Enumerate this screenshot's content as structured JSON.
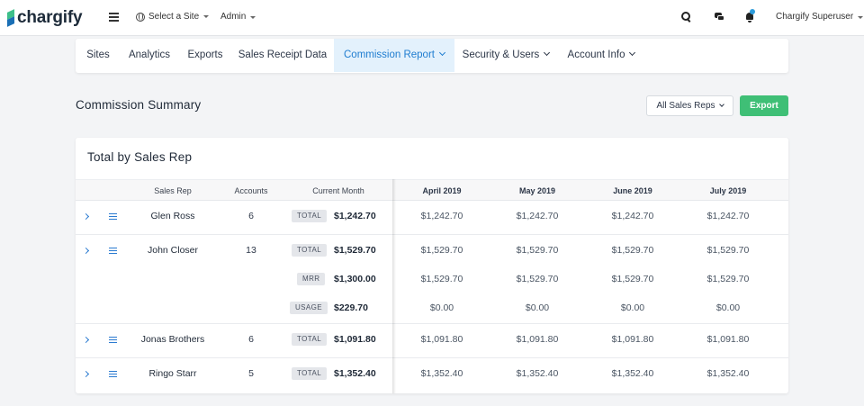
{
  "topbar": {
    "logo_text": "chargify",
    "site_select_label": "Select a Site",
    "admin_label": "Admin",
    "user_label": "Chargify Superuser"
  },
  "nav": {
    "items": [
      {
        "label": "Sites",
        "dropdown": false,
        "active": false
      },
      {
        "label": "Analytics",
        "dropdown": false,
        "active": false
      },
      {
        "label": "Exports",
        "dropdown": false,
        "active": false
      },
      {
        "label": "Sales Receipt Data",
        "dropdown": false,
        "active": false
      },
      {
        "label": "Commission Report",
        "dropdown": true,
        "active": true
      },
      {
        "label": "Security & Users",
        "dropdown": true,
        "active": false
      },
      {
        "label": "Account Info",
        "dropdown": true,
        "active": false
      }
    ]
  },
  "page": {
    "title": "Commission Summary",
    "reps_select_label": "All Sales Reps",
    "export_label": "Export"
  },
  "table": {
    "card_title": "Total by Sales Rep",
    "columns": {
      "sales_rep": "Sales Rep",
      "accounts": "Accounts",
      "current_month": "Current Month"
    },
    "months": [
      "April 2019",
      "May 2019",
      "June 2019",
      "July 2019"
    ],
    "rows": [
      {
        "name": "Glen Ross",
        "accounts": "6",
        "lines": [
          {
            "tag": "TOTAL",
            "current": "$1,242.70",
            "months": [
              "$1,242.70",
              "$1,242.70",
              "$1,242.70",
              "$1,242.70"
            ]
          }
        ]
      },
      {
        "name": "John Closer",
        "accounts": "13",
        "lines": [
          {
            "tag": "TOTAL",
            "current": "$1,529.70",
            "months": [
              "$1,529.70",
              "$1,529.70",
              "$1,529.70",
              "$1,529.70"
            ]
          },
          {
            "tag": "MRR",
            "current": "$1,300.00",
            "months": [
              "$1,529.70",
              "$1,529.70",
              "$1,529.70",
              "$1,529.70"
            ]
          },
          {
            "tag": "USAGE",
            "current": "$229.70",
            "months": [
              "$0.00",
              "$0.00",
              "$0.00",
              "$0.00"
            ]
          }
        ]
      },
      {
        "name": "Jonas Brothers",
        "accounts": "6",
        "lines": [
          {
            "tag": "TOTAL",
            "current": "$1,091.80",
            "months": [
              "$1,091.80",
              "$1,091.80",
              "$1,091.80",
              "$1,091.80"
            ]
          }
        ]
      },
      {
        "name": "Ringo Starr",
        "accounts": "5",
        "lines": [
          {
            "tag": "TOTAL",
            "current": "$1,352.40",
            "months": [
              "$1,352.40",
              "$1,352.40",
              "$1,352.40",
              "$1,352.40"
            ]
          }
        ]
      }
    ]
  },
  "colors": {
    "accent_blue": "#1f7dd0",
    "active_nav_bg": "#e3f1fc",
    "export_green": "#3fbf76",
    "notification_dot": "#2d9cdb"
  }
}
